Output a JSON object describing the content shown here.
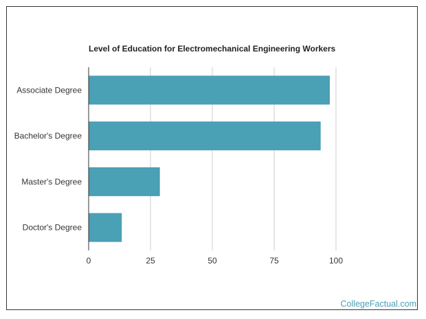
{
  "chart_data": {
    "type": "bar",
    "orientation": "horizontal",
    "title": "Level of Education for Electromechanical Engineering Workers",
    "categories": [
      "Associate Degree",
      "Bachelor's Degree",
      "Master's Degree",
      "Doctor's Degree"
    ],
    "values": [
      97.5,
      93.8,
      28.8,
      13.4
    ],
    "xlim": [
      0,
      100
    ],
    "xticks": [
      "0",
      "25",
      "50",
      "75",
      "100"
    ],
    "grid": true,
    "bar_color": "#4aa0b5",
    "grid_color": "#cccccc"
  },
  "watermark": "CollegeFactual.com"
}
